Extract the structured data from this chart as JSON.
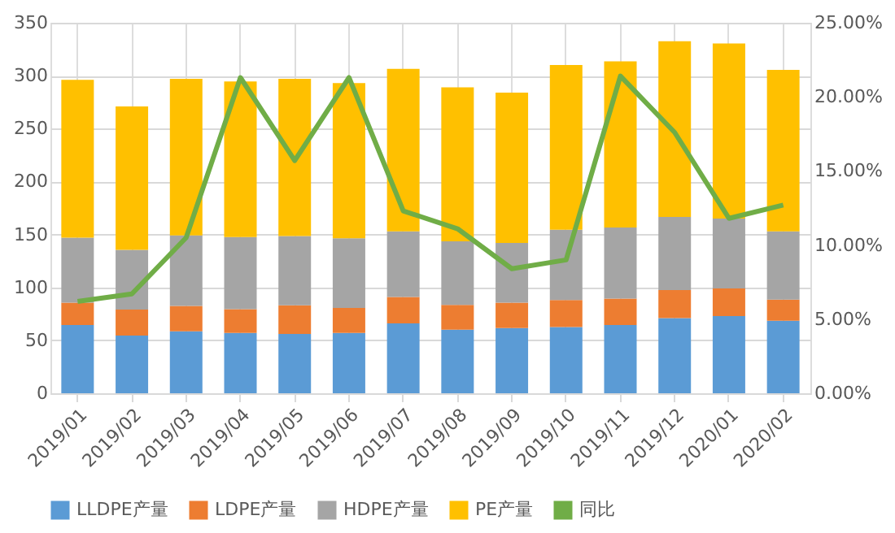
{
  "chart_data": {
    "type": "bar",
    "stacked": true,
    "grid": true,
    "legend": "bottom",
    "categories": [
      "2019/01",
      "2019/02",
      "2019/03",
      "2019/04",
      "2019/05",
      "2019/06",
      "2019/07",
      "2019/08",
      "2019/09",
      "2019/10",
      "2019/11",
      "2019/12",
      "2020/01",
      "2020/02"
    ],
    "ylim": [
      0,
      350
    ],
    "yticks": [
      0,
      50,
      100,
      150,
      200,
      250,
      300,
      350
    ],
    "y2lim": [
      0,
      25
    ],
    "y2ticks": [
      {
        "value": 0,
        "label": "0.00%"
      },
      {
        "value": 5,
        "label": "5.00%"
      },
      {
        "value": 10,
        "label": "10.00%"
      },
      {
        "value": 15,
        "label": "15.00%"
      },
      {
        "value": 20,
        "label": "20.00%"
      },
      {
        "value": 25,
        "label": "25.00%"
      }
    ],
    "series": [
      {
        "name": "LLDPE产量",
        "color": "#5b9bd5",
        "values": [
          64.5,
          54.5,
          58.5,
          57,
          56,
          57,
          66,
          60,
          61.5,
          62.5,
          64.5,
          71,
          73,
          68.5
        ]
      },
      {
        "name": "LDPE产量",
        "color": "#ed7d31",
        "values": [
          21,
          24.5,
          24,
          22.5,
          27,
          23.5,
          25,
          23.5,
          24,
          25.5,
          25,
          26.5,
          26,
          20
        ]
      },
      {
        "name": "HDPE产量",
        "color": "#a5a5a5",
        "values": [
          61.5,
          56.5,
          66.5,
          68,
          65.5,
          66,
          62,
          60,
          56.5,
          66.5,
          67,
          69,
          66,
          64.5
        ]
      },
      {
        "name": "PE产量",
        "color": "#ffc000",
        "values": [
          149,
          135.5,
          148,
          147,
          148.5,
          146.5,
          153.5,
          145.5,
          142,
          155.5,
          157,
          166,
          165.5,
          152.5
        ]
      },
      {
        "name": "同比",
        "color": "#70ad47",
        "type": "line",
        "axis": "y2",
        "values": [
          6.2,
          6.7,
          10.5,
          21.3,
          15.7,
          21.3,
          12.3,
          11.1,
          8.4,
          9.0,
          21.4,
          17.6,
          11.8,
          12.7
        ]
      }
    ]
  }
}
